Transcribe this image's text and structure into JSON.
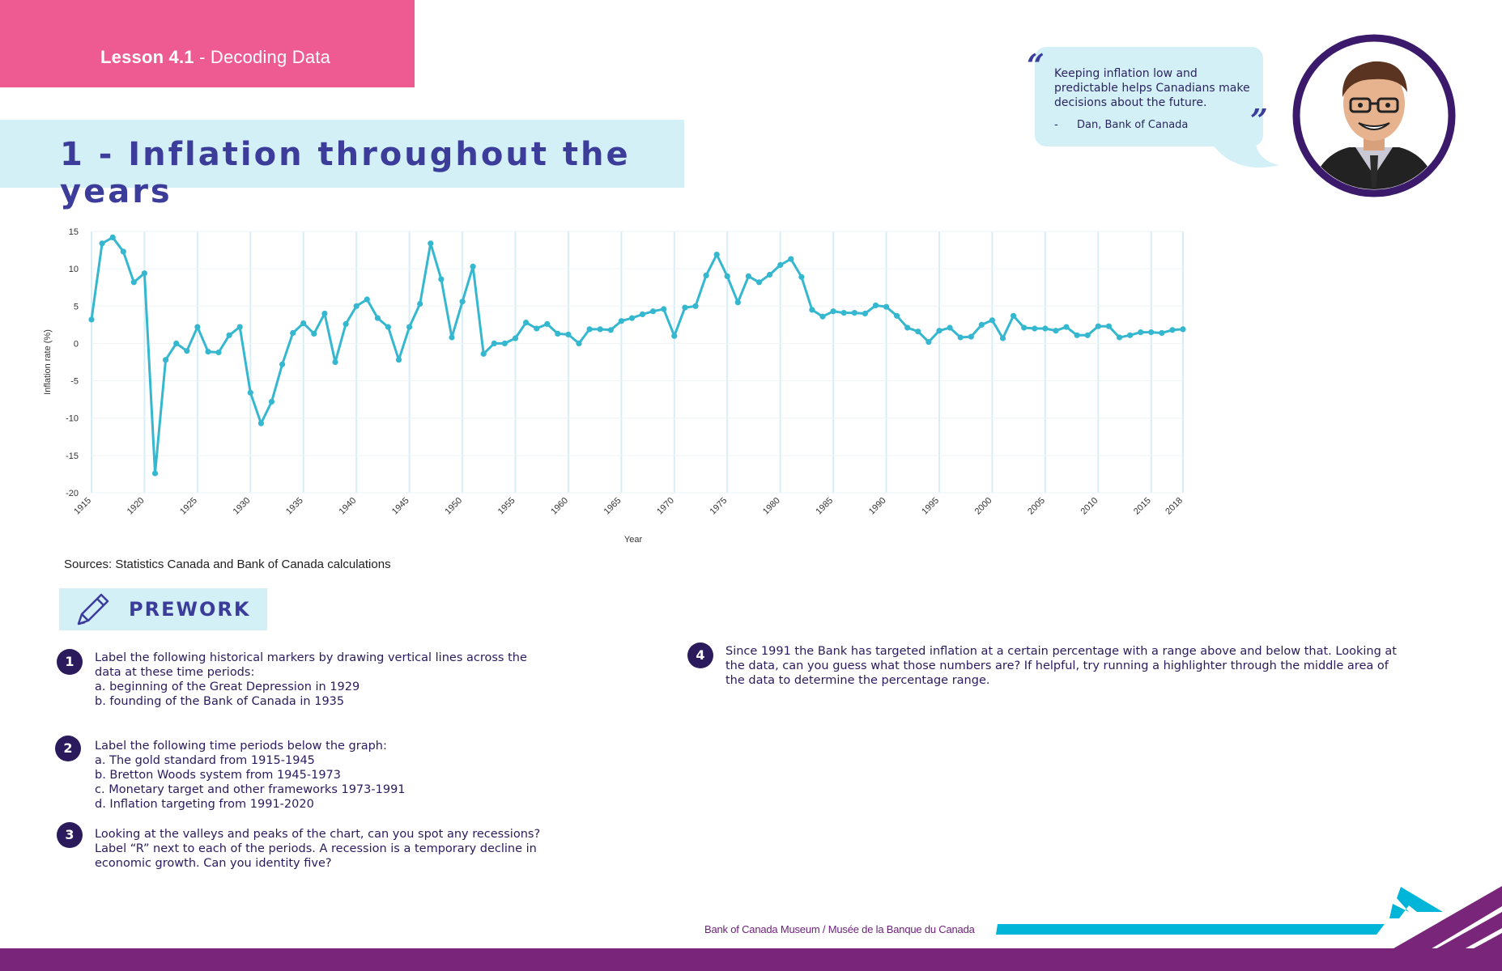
{
  "lesson": {
    "bold": "Lesson 4.1",
    "rest": " - Decoding Data"
  },
  "title": "1 - Inflation throughout the years",
  "quote": {
    "text": "Keeping inflation low and predictable helps Canadians make decisions about the future.",
    "dash": "-",
    "author": "Dan, Bank of Canada"
  },
  "avatar_icon": "person-portrait-icon",
  "chart_data": {
    "type": "line",
    "xlabel": "Year",
    "ylabel": "Inflation rate (%)",
    "ylim": [
      -20,
      15
    ],
    "yticks": [
      15,
      10,
      5,
      0,
      -5,
      -10,
      -15,
      -20
    ],
    "xlim": [
      1915,
      2018
    ],
    "xticks": [
      "1915",
      "1920",
      "1925",
      "1930",
      "1935",
      "1940",
      "1945",
      "1950",
      "1955",
      "1960",
      "1965",
      "1970",
      "1975",
      "1980",
      "1985",
      "1990",
      "1995",
      "2000",
      "2005",
      "2010",
      "2015",
      "2018"
    ],
    "grid": "vertical",
    "color": "#35b8cf",
    "x": [
      1915,
      1916,
      1917,
      1918,
      1919,
      1920,
      1921,
      1922,
      1923,
      1924,
      1925,
      1926,
      1927,
      1928,
      1929,
      1930,
      1931,
      1932,
      1933,
      1934,
      1935,
      1936,
      1937,
      1938,
      1939,
      1940,
      1941,
      1942,
      1943,
      1944,
      1945,
      1946,
      1947,
      1948,
      1949,
      1950,
      1951,
      1952,
      1953,
      1954,
      1955,
      1956,
      1957,
      1958,
      1959,
      1960,
      1961,
      1962,
      1963,
      1964,
      1965,
      1966,
      1967,
      1968,
      1969,
      1970,
      1971,
      1972,
      1973,
      1974,
      1975,
      1976,
      1977,
      1978,
      1979,
      1980,
      1981,
      1982,
      1983,
      1984,
      1985,
      1986,
      1987,
      1988,
      1989,
      1990,
      1991,
      1992,
      1993,
      1994,
      1995,
      1996,
      1997,
      1998,
      1999,
      2000,
      2001,
      2002,
      2003,
      2004,
      2005,
      2006,
      2007,
      2008,
      2009,
      2010,
      2011,
      2012,
      2013,
      2014,
      2015,
      2016,
      2017,
      2018
    ],
    "values": [
      3.2,
      13.4,
      14.2,
      12.3,
      8.2,
      9.4,
      -17.4,
      -2.2,
      0.0,
      -1.0,
      2.2,
      -1.1,
      -1.2,
      1.1,
      2.2,
      -6.6,
      -10.7,
      -7.8,
      -2.8,
      1.4,
      2.7,
      1.3,
      4.0,
      -2.5,
      2.6,
      5.0,
      5.9,
      3.4,
      2.2,
      -2.2,
      2.2,
      5.3,
      13.4,
      8.6,
      0.8,
      5.6,
      10.3,
      -1.4,
      0.0,
      0.0,
      0.7,
      2.8,
      2.0,
      2.6,
      1.3,
      1.2,
      0.0,
      1.9,
      1.9,
      1.8,
      3.0,
      3.4,
      3.9,
      4.3,
      4.6,
      1.0,
      4.8,
      5.0,
      9.1,
      11.9,
      9.0,
      5.5,
      9.0,
      8.2,
      9.2,
      10.5,
      11.3,
      8.9,
      4.5,
      3.6,
      4.3,
      4.1,
      4.1,
      4.0,
      5.1,
      4.9,
      3.7,
      2.1,
      1.6,
      0.2,
      1.7,
      2.1,
      0.8,
      0.9,
      2.5,
      3.1,
      0.7,
      3.7,
      2.1,
      2.0,
      2.0,
      1.7,
      2.2,
      1.1,
      1.1,
      2.3,
      2.3,
      0.8,
      1.1,
      1.5,
      1.5,
      1.4,
      1.8,
      1.9
    ]
  },
  "sources": "Sources: Statistics Canada and Bank of Canada calculations",
  "prework": {
    "label": "PREWORK",
    "icon": "pencil-icon"
  },
  "questions": [
    {
      "num": "1",
      "text": "Label the following historical markers by drawing vertical lines across the\ndata at these time periods:\na. beginning of the Great Depression in 1929\nb. founding of the Bank of Canada in 1935"
    },
    {
      "num": "2",
      "text": "Label the following time periods below the graph:\na. The gold standard from 1915-1945\nb. Bretton Woods system from 1945-1973\nc. Monetary target and other frameworks 1973-1991\nd. Inflation targeting from 1991-2020"
    },
    {
      "num": "3",
      "text": "Looking at the valleys and peaks of the chart, can you spot any recessions?\nLabel “R” next to each of the periods. A recession is a temporary decline in\neconomic growth. Can you identity five?"
    },
    {
      "num": "4",
      "text": "Since 1991 the Bank has targeted inflation at a certain percentage with a range above and below that. Looking at\nthe data, can you guess what those numbers are? If helpful, try running a highlighter through the middle area of\nthe data to determine the percentage range."
    }
  ],
  "footer": {
    "left": "Bank of Canada Museum",
    "sep": " / ",
    "right": "Musée de la Banque du Canada"
  },
  "footer_logo": "bank-of-canada-museum-logo-icon",
  "colors": {
    "pink": "#ee5b93",
    "light_blue": "#d3f0f7",
    "navy": "#3c3c9a",
    "purple": "#79257a",
    "teal": "#00b5d8",
    "line": "#35b8cf"
  }
}
